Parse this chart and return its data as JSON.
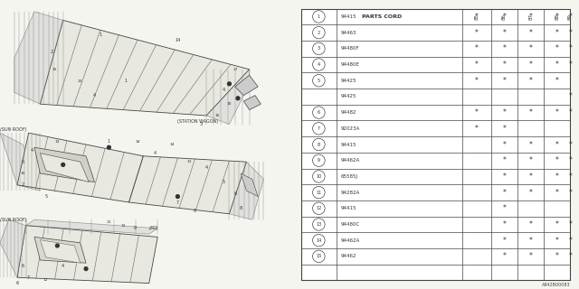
{
  "diagram_ref": "A942B00083",
  "bg_color": "#f5f5f0",
  "line_color": "#444444",
  "table_bg": "#ffffff",
  "years": [
    "85",
    "86",
    "87",
    "88",
    "89"
  ],
  "rows": [
    {
      "num": "1",
      "code": "94415",
      "cols": [
        true,
        true,
        true,
        true,
        true
      ],
      "circle": true
    },
    {
      "num": "2",
      "code": "94463",
      "cols": [
        true,
        true,
        true,
        true,
        true
      ],
      "circle": true
    },
    {
      "num": "3",
      "code": "94480F",
      "cols": [
        true,
        true,
        true,
        true,
        true
      ],
      "circle": true
    },
    {
      "num": "4",
      "code": "94480E",
      "cols": [
        true,
        true,
        true,
        true,
        true
      ],
      "circle": true
    },
    {
      "num": "5",
      "code": "94425",
      "cols": [
        true,
        true,
        true,
        true,
        false
      ],
      "circle": true
    },
    {
      "num": "",
      "code": "94425",
      "cols": [
        false,
        false,
        false,
        false,
        true
      ],
      "circle": false
    },
    {
      "num": "6",
      "code": "94482",
      "cols": [
        true,
        true,
        true,
        true,
        true
      ],
      "circle": true
    },
    {
      "num": "7",
      "code": "92023A",
      "cols": [
        true,
        true,
        false,
        false,
        false
      ],
      "circle": true
    },
    {
      "num": "8",
      "code": "94415",
      "cols": [
        false,
        true,
        true,
        true,
        true
      ],
      "circle": true
    },
    {
      "num": "9",
      "code": "94462A",
      "cols": [
        false,
        true,
        true,
        true,
        true
      ],
      "circle": true
    },
    {
      "num": "10",
      "code": "65585J",
      "cols": [
        false,
        true,
        true,
        true,
        true
      ],
      "circle": true
    },
    {
      "num": "11",
      "code": "94282A",
      "cols": [
        false,
        true,
        true,
        true,
        true
      ],
      "circle": true
    },
    {
      "num": "12",
      "code": "94415",
      "cols": [
        false,
        true,
        false,
        false,
        false
      ],
      "circle": true
    },
    {
      "num": "13",
      "code": "94480C",
      "cols": [
        false,
        true,
        true,
        true,
        true
      ],
      "circle": true
    },
    {
      "num": "14",
      "code": "94462A",
      "cols": [
        false,
        true,
        true,
        true,
        true
      ],
      "circle": true
    },
    {
      "num": "15",
      "code": "94462",
      "cols": [
        false,
        true,
        true,
        true,
        true
      ],
      "circle": true
    }
  ],
  "labels": {
    "station_wagon": "(STATION WAGON)",
    "sun_roof_mid": "(SUN ROOF)",
    "sun_roof_bot": "(SUN ROOF)",
    "body_3d": "(3D)"
  }
}
